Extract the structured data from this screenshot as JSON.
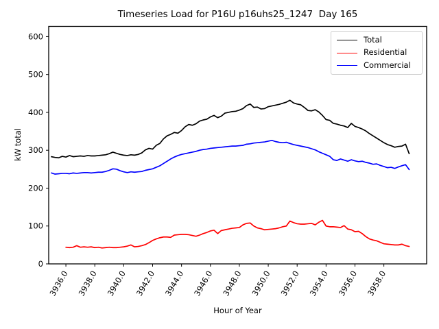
{
  "figure": {
    "title": "Timeseries Load for P16U p16uhs25_1247  Day 165",
    "xlabel": "Hour of Year",
    "ylabel": "kW total",
    "background": "#ffffff"
  },
  "legend": {
    "position": "upper right",
    "items": [
      {
        "label": "Total",
        "color": "#000000"
      },
      {
        "label": "Residential",
        "color": "#ff0000"
      },
      {
        "label": "Commercial",
        "color": "#0000ff"
      }
    ]
  },
  "chart_data": {
    "type": "line",
    "title": "Timeseries Load for P16U p16uhs25_1247  Day 165",
    "xlabel": "Hour of Year",
    "ylabel": "kW total",
    "grid": false,
    "xlim": [
      3934.81,
      3960.96
    ],
    "ylim": [
      0,
      627
    ],
    "x_tick_values": [
      3936,
      3938,
      3940,
      3942,
      3944,
      3946,
      3948,
      3950,
      3952,
      3954,
      3956,
      3958
    ],
    "x_tick_labels": [
      "3936.0",
      "3938.0",
      "3940.0",
      "3942.0",
      "3944.0",
      "3946.0",
      "3948.0",
      "3950.0",
      "3952.0",
      "3954.0",
      "3956.0",
      "3958.0"
    ],
    "y_tick_values": [
      0,
      100,
      200,
      300,
      400,
      500,
      600
    ],
    "y_tick_labels": [
      "0",
      "100",
      "200",
      "300",
      "400",
      "500",
      "600"
    ],
    "x_tick_rotation_deg": 60,
    "series": [
      {
        "name": "Total",
        "color": "#000000",
        "x_start": 3935.0,
        "x_step": 0.25,
        "values": [
          283,
          281,
          280,
          284,
          282,
          286,
          283,
          284,
          285,
          284,
          286,
          285,
          285,
          286,
          287,
          288,
          291,
          295,
          292,
          289,
          287,
          286,
          288,
          287,
          289,
          293,
          301,
          305,
          303,
          313,
          318,
          330,
          338,
          342,
          347,
          345,
          352,
          362,
          368,
          366,
          370,
          377,
          380,
          382,
          388,
          392,
          386,
          390,
          398,
          400,
          402,
          403,
          406,
          410,
          418,
          422,
          413,
          414,
          409,
          410,
          415,
          417,
          419,
          421,
          424,
          427,
          432,
          425,
          422,
          420,
          413,
          405,
          404,
          407,
          401,
          392,
          381,
          379,
          371,
          369,
          366,
          364,
          360,
          371,
          363,
          360,
          356,
          351,
          344,
          338,
          332,
          326,
          320,
          315,
          312,
          308,
          310,
          311,
          316,
          291
        ]
      },
      {
        "name": "Residential",
        "color": "#ff0000",
        "x_start": 3936.0,
        "x_step": 0.25,
        "values": [
          44,
          43,
          44,
          48,
          44,
          45,
          44,
          45,
          43,
          44,
          42,
          43,
          44,
          43,
          43,
          44,
          45,
          47,
          50,
          45,
          46,
          48,
          51,
          56,
          62,
          66,
          69,
          71,
          71,
          70,
          76,
          77,
          78,
          78,
          77,
          75,
          73,
          76,
          80,
          83,
          87,
          89,
          80,
          88,
          90,
          92,
          94,
          95,
          96,
          103,
          107,
          108,
          100,
          95,
          93,
          90,
          91,
          92,
          93,
          95,
          98,
          100,
          113,
          109,
          106,
          105,
          105,
          106,
          107,
          103,
          110,
          115,
          100,
          98,
          98,
          97,
          96,
          101,
          92,
          90,
          85,
          86,
          80,
          72,
          66,
          63,
          61,
          57,
          53,
          52,
          51,
          50,
          50,
          52,
          48,
          46
        ]
      },
      {
        "name": "Commercial",
        "color": "#0000ff",
        "x_start": 3935.0,
        "x_step": 0.25,
        "values": [
          240,
          237,
          238,
          239,
          239,
          238,
          240,
          239,
          240,
          241,
          241,
          240,
          241,
          242,
          242,
          244,
          247,
          251,
          250,
          246,
          243,
          241,
          243,
          242,
          243,
          244,
          247,
          249,
          251,
          255,
          259,
          265,
          271,
          277,
          282,
          286,
          289,
          291,
          293,
          295,
          297,
          300,
          302,
          303,
          305,
          306,
          307,
          308,
          309,
          310,
          311,
          311,
          312,
          313,
          316,
          317,
          319,
          320,
          321,
          322,
          324,
          326,
          323,
          321,
          320,
          321,
          318,
          315,
          313,
          311,
          309,
          307,
          304,
          301,
          296,
          292,
          288,
          284,
          275,
          273,
          277,
          274,
          271,
          275,
          272,
          270,
          271,
          268,
          266,
          263,
          264,
          260,
          257,
          254,
          255,
          252,
          256,
          259,
          262,
          249
        ]
      }
    ]
  }
}
